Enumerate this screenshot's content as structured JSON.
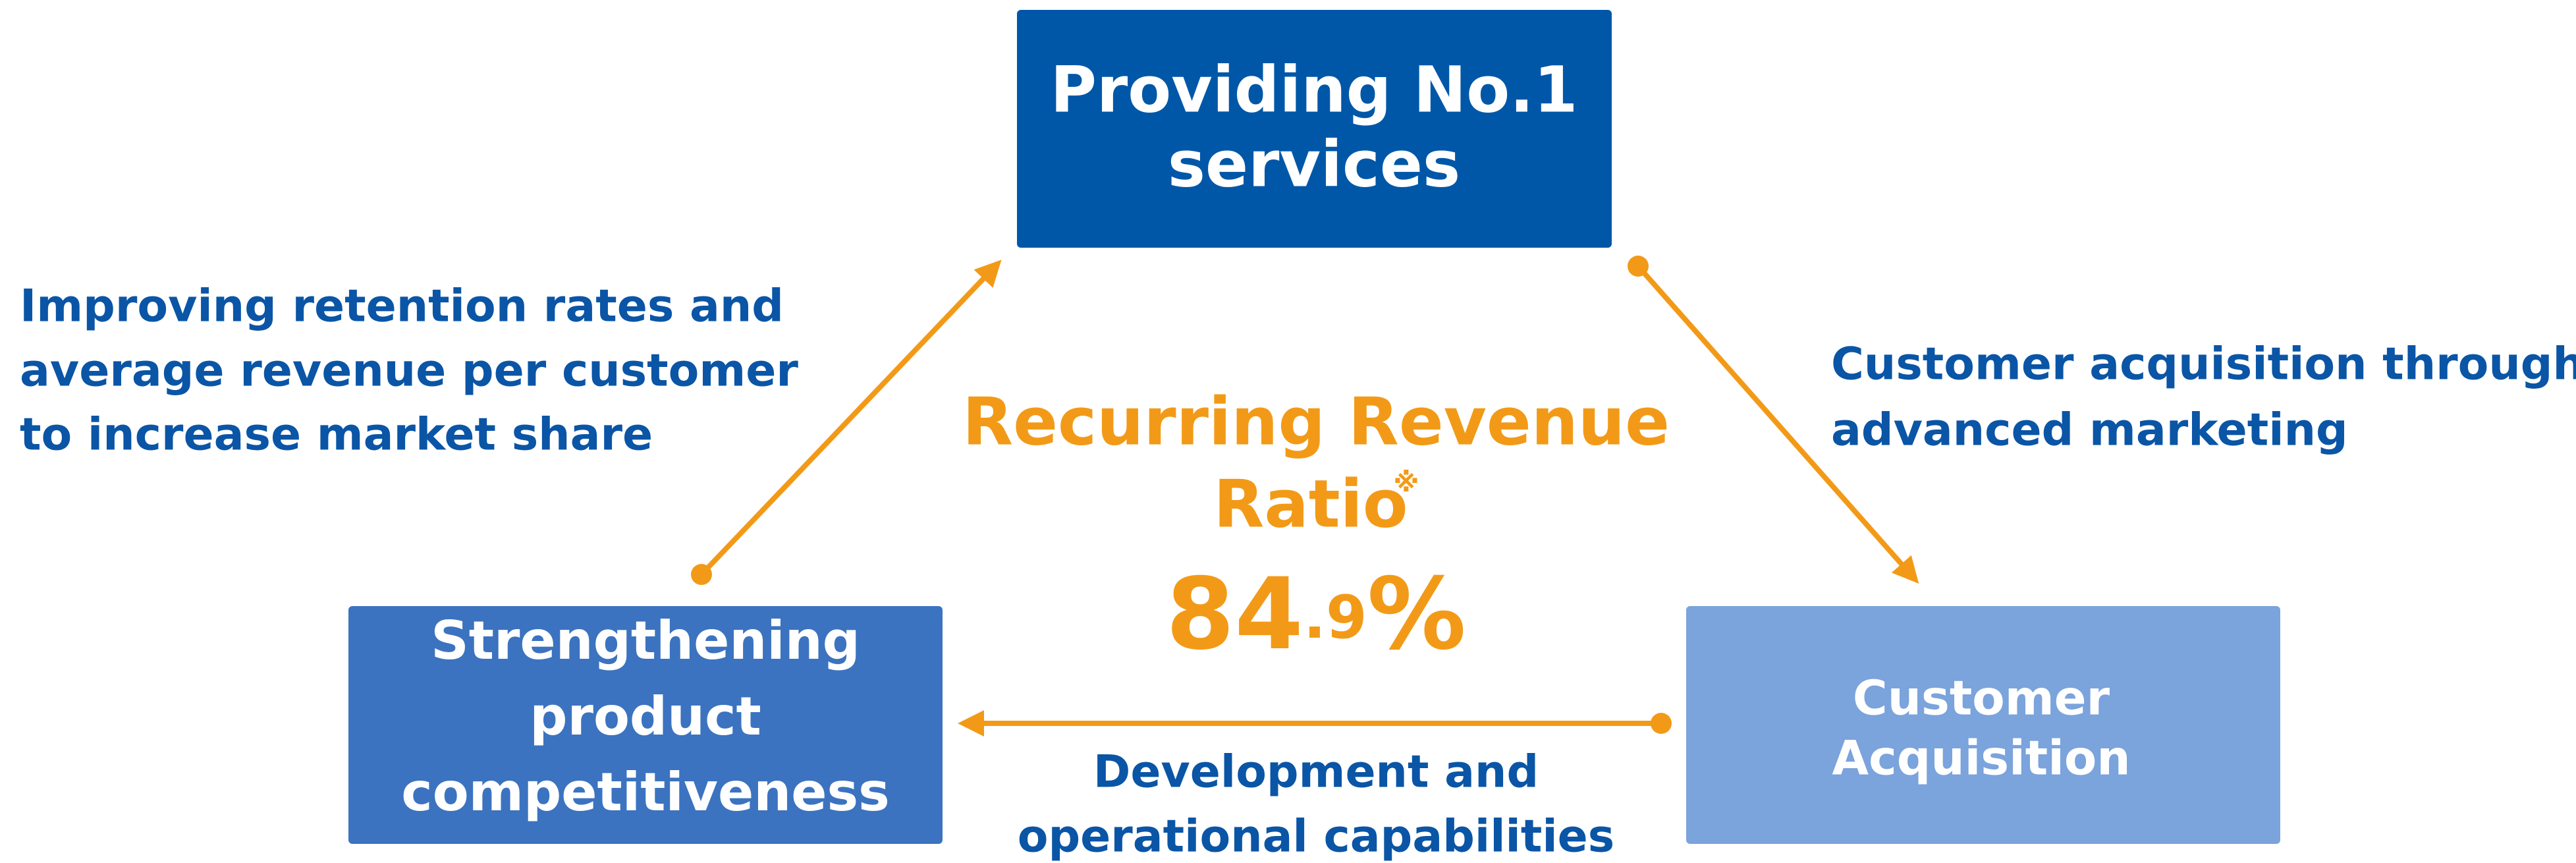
{
  "nodes": [
    {
      "lines": [
        "Providing No.1",
        "services"
      ]
    },
    {
      "lines": [
        "Strengthening",
        "product",
        "competitiveness"
      ]
    },
    {
      "lines": [
        "Customer",
        "Acquisition"
      ]
    }
  ],
  "edges": [
    {
      "lines": [
        "Improving retention rates and",
        "average revenue per customer",
        "to increase market share"
      ]
    },
    {
      "lines": [
        "Customer acquisition through",
        "advanced marketing"
      ]
    },
    {
      "lines": [
        "Development and",
        "operational capabilities"
      ]
    }
  ],
  "center": {
    "title": "Recurring Revenue",
    "subtitle": "Ratio",
    "note_mark": "※",
    "integer": "84",
    "decimal": ".9",
    "unit": "%"
  }
}
